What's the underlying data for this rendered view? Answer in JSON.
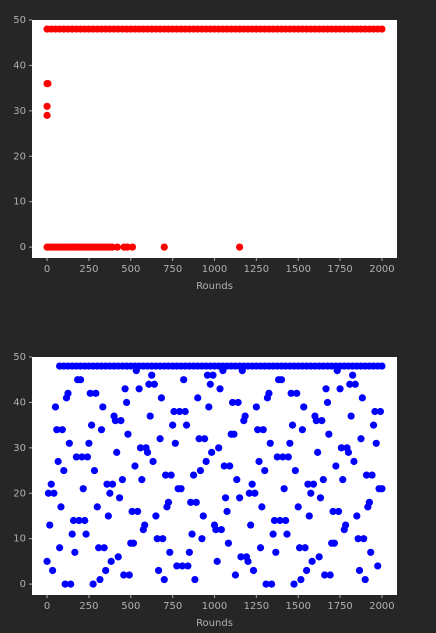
{
  "chart_data": [
    {
      "type": "scatter",
      "x_label": "Rounds",
      "xlim": [
        -90,
        2090
      ],
      "ylim": [
        -2.4,
        50
      ],
      "xticks": [
        0,
        250,
        500,
        750,
        1000,
        1250,
        1500,
        1750,
        2000
      ],
      "yticks": [
        0,
        10,
        20,
        30,
        40,
        50
      ],
      "series": [
        {
          "color": "#ff0000",
          "x": [
            0,
            25,
            50,
            75,
            100,
            125,
            150,
            175,
            200,
            225,
            250,
            275,
            300,
            325,
            350,
            375,
            400,
            425,
            450,
            475,
            500,
            525,
            550,
            575,
            600,
            625,
            650,
            675,
            700,
            725,
            750,
            775,
            800,
            825,
            850,
            875,
            900,
            925,
            950,
            975,
            1000,
            1025,
            1050,
            1075,
            1100,
            1125,
            1150,
            1175,
            1200,
            1225,
            1250,
            1275,
            1300,
            1325,
            1350,
            1375,
            1400,
            1425,
            1450,
            1475,
            1500,
            1525,
            1550,
            1575,
            1600,
            1625,
            1650,
            1675,
            1700,
            1725,
            1750,
            1775,
            1800,
            1825,
            1850,
            1875,
            1900,
            1925,
            1950,
            1975,
            2000
          ],
          "values": [
            48,
            48,
            48,
            48,
            48,
            48,
            48,
            48,
            48,
            48,
            48,
            48,
            48,
            48,
            48,
            48,
            48,
            48,
            48,
            48,
            48,
            48,
            48,
            48,
            48,
            48,
            48,
            48,
            48,
            48,
            48,
            48,
            48,
            48,
            48,
            48,
            48,
            48,
            48,
            48,
            48,
            48,
            48,
            48,
            48,
            48,
            48,
            48,
            48,
            48,
            48,
            48,
            48,
            48,
            48,
            48,
            48,
            48,
            48,
            48,
            48,
            48,
            48,
            48,
            48,
            48,
            48,
            48,
            48,
            48,
            48,
            48,
            48,
            48,
            48,
            48,
            48,
            48,
            48,
            48,
            48
          ]
        },
        {
          "color": "#ff0000",
          "x": [
            0,
            5,
            0,
            0
          ],
          "values": [
            36,
            36,
            31,
            29
          ]
        },
        {
          "color": "#ff0000",
          "x": [
            0,
            15,
            30,
            45,
            60,
            75,
            90,
            105,
            120,
            135,
            150,
            165,
            180,
            195,
            210,
            225,
            240,
            255,
            270,
            285,
            300,
            315,
            330,
            345,
            360,
            375,
            390,
            420,
            460,
            480,
            510,
            700,
            1150
          ],
          "values": [
            0,
            0,
            0,
            0,
            0,
            0,
            0,
            0,
            0,
            0,
            0,
            0,
            0,
            0,
            0,
            0,
            0,
            0,
            0,
            0,
            0,
            0,
            0,
            0,
            0,
            0,
            0,
            0,
            0,
            0,
            0,
            0,
            0
          ]
        }
      ]
    },
    {
      "type": "scatter",
      "x_label": "Rounds",
      "xlim": [
        -90,
        2090
      ],
      "ylim": [
        -2.4,
        50
      ],
      "xticks": [
        0,
        250,
        500,
        750,
        1000,
        1250,
        1500,
        1750,
        2000
      ],
      "yticks": [
        0,
        10,
        20,
        30,
        40,
        50
      ],
      "series": [
        {
          "color": "#0000ff",
          "x": [
            75,
            100,
            125,
            150,
            175,
            200,
            225,
            250,
            275,
            300,
            325,
            350,
            375,
            400,
            425,
            450,
            475,
            500,
            525,
            550,
            575,
            600,
            625,
            650,
            675,
            700,
            725,
            750,
            775,
            800,
            825,
            850,
            875,
            900,
            925,
            950,
            975,
            1000,
            1025,
            1050,
            1075,
            1100,
            1125,
            1150,
            1175,
            1200,
            1225,
            1250,
            1275,
            1300,
            1325,
            1350,
            1375,
            1400,
            1425,
            1450,
            1475,
            1500,
            1525,
            1550,
            1575,
            1600,
            1625,
            1650,
            1675,
            1700,
            1725,
            1750,
            1775,
            1800,
            1825,
            1850,
            1875,
            1900,
            1925,
            1950,
            1975,
            2000
          ],
          "values": [
            48,
            48,
            48,
            48,
            48,
            48,
            48,
            48,
            48,
            48,
            48,
            48,
            48,
            48,
            48,
            48,
            48,
            48,
            48,
            48,
            48,
            48,
            48,
            48,
            48,
            48,
            48,
            48,
            48,
            48,
            48,
            48,
            48,
            48,
            48,
            48,
            48,
            48,
            48,
            48,
            48,
            48,
            48,
            48,
            48,
            48,
            48,
            48,
            48,
            48,
            48,
            48,
            48,
            48,
            48,
            48,
            48,
            48,
            48,
            48,
            48,
            48,
            48,
            48,
            48,
            48,
            48,
            48,
            48,
            48,
            48,
            48,
            48,
            48,
            48,
            48,
            48,
            48
          ]
        },
        {
          "color": "#0000ff",
          "x": [
            0,
            25,
            50,
            75,
            100,
            125,
            150,
            175,
            200,
            225,
            250,
            275,
            300,
            325,
            350,
            375,
            400,
            425,
            450,
            475,
            500,
            525,
            550,
            575,
            600,
            625,
            650,
            675,
            700,
            725,
            750,
            775,
            800,
            825,
            850,
            875,
            900,
            925,
            950,
            975,
            1000,
            1025,
            1050,
            1075,
            1100,
            1125,
            1150,
            1175,
            1200,
            1225,
            1250,
            1275,
            1300,
            1325,
            1350,
            1375,
            1400,
            1425,
            1450,
            1475,
            1500,
            1525,
            1550,
            1575,
            1600,
            1625,
            1650,
            1675,
            1700,
            1725,
            1750,
            1775,
            1800,
            1825,
            1850,
            1875,
            1900,
            1925,
            1950,
            1975,
            2000
          ],
          "values": [
            5,
            22,
            39,
            8,
            25,
            42,
            11,
            28,
            45,
            14,
            31,
            0,
            17,
            34,
            3,
            20,
            37,
            6,
            23,
            40,
            9,
            26,
            43,
            12,
            29,
            46,
            15,
            32,
            1,
            18,
            35,
            4,
            21,
            38,
            7,
            24,
            41,
            10,
            27,
            44,
            13,
            30,
            47,
            16,
            33,
            2,
            19,
            36,
            5,
            22,
            39,
            8,
            25,
            42,
            11,
            28,
            45,
            14,
            31,
            0,
            17,
            34,
            3,
            20,
            37,
            6,
            23,
            40,
            9,
            26,
            43,
            12,
            29,
            46,
            15,
            32,
            1,
            18,
            35,
            4,
            21
          ]
        },
        {
          "color": "#0000ff",
          "x": [
            8,
            33,
            58,
            83,
            108,
            133,
            158,
            183,
            208,
            233,
            258,
            283,
            308,
            333,
            358,
            383,
            408,
            433,
            458,
            483,
            508,
            533,
            558,
            583,
            608,
            633,
            658,
            683,
            708,
            733,
            758,
            783,
            808,
            833,
            858,
            883,
            908,
            933,
            958,
            983,
            1008,
            1033,
            1058,
            1083,
            1108,
            1133,
            1158,
            1183,
            1208,
            1233,
            1258,
            1283,
            1308,
            1333,
            1358,
            1383,
            1408,
            1433,
            1458,
            1483,
            1508,
            1533,
            1558,
            1583,
            1608,
            1633,
            1658,
            1683,
            1708,
            1733,
            1758,
            1783,
            1808,
            1833,
            1858,
            1883,
            1908,
            1933,
            1958,
            1983
          ],
          "values": [
            20,
            3,
            34,
            17,
            0,
            31,
            14,
            45,
            28,
            11,
            42,
            25,
            8,
            39,
            22,
            5,
            36,
            19,
            2,
            33,
            16,
            47,
            30,
            13,
            44,
            27,
            10,
            41,
            24,
            7,
            38,
            21,
            4,
            35,
            18,
            1,
            32,
            15,
            46,
            29,
            12,
            43,
            26,
            9,
            40,
            23,
            6,
            37,
            20,
            3,
            34,
            17,
            0,
            31,
            14,
            45,
            28,
            11,
            42,
            25,
            8,
            39,
            22,
            5,
            36,
            19,
            2,
            33,
            16,
            47,
            30,
            13,
            44,
            27,
            10,
            41,
            24,
            7,
            38,
            21
          ]
        },
        {
          "color": "#0000ff",
          "x": [
            16,
            41,
            66,
            91,
            116,
            141,
            166,
            191,
            216,
            241,
            266,
            291,
            316,
            341,
            366,
            391,
            416,
            441,
            466,
            491,
            516,
            541,
            566,
            591,
            616,
            641,
            666,
            691,
            716,
            741,
            766,
            791,
            816,
            841,
            866,
            891,
            916,
            941,
            966,
            991,
            1016,
            1041,
            1066,
            1091,
            1116,
            1141,
            1166,
            1191,
            1216,
            1241,
            1266,
            1291,
            1316,
            1341,
            1366,
            1391,
            1416,
            1441,
            1466,
            1491,
            1516,
            1541,
            1566,
            1591,
            1616,
            1641,
            1666,
            1691,
            1716,
            1741,
            1766,
            1791,
            1816,
            1841,
            1866,
            1891,
            1916,
            1941,
            1966,
            1991
          ],
          "values": [
            13,
            20,
            27,
            34,
            41,
            0,
            7,
            14,
            21,
            28,
            35,
            42,
            1,
            8,
            15,
            22,
            29,
            36,
            43,
            2,
            9,
            16,
            23,
            30,
            37,
            44,
            3,
            10,
            17,
            24,
            31,
            38,
            45,
            4,
            11,
            18,
            25,
            32,
            39,
            46,
            5,
            12,
            19,
            26,
            33,
            40,
            47,
            6,
            13,
            20,
            27,
            34,
            41,
            0,
            7,
            14,
            21,
            28,
            35,
            42,
            1,
            8,
            15,
            22,
            29,
            36,
            43,
            2,
            9,
            16,
            23,
            30,
            37,
            44,
            3,
            10,
            17,
            24,
            31,
            38
          ]
        }
      ]
    }
  ]
}
